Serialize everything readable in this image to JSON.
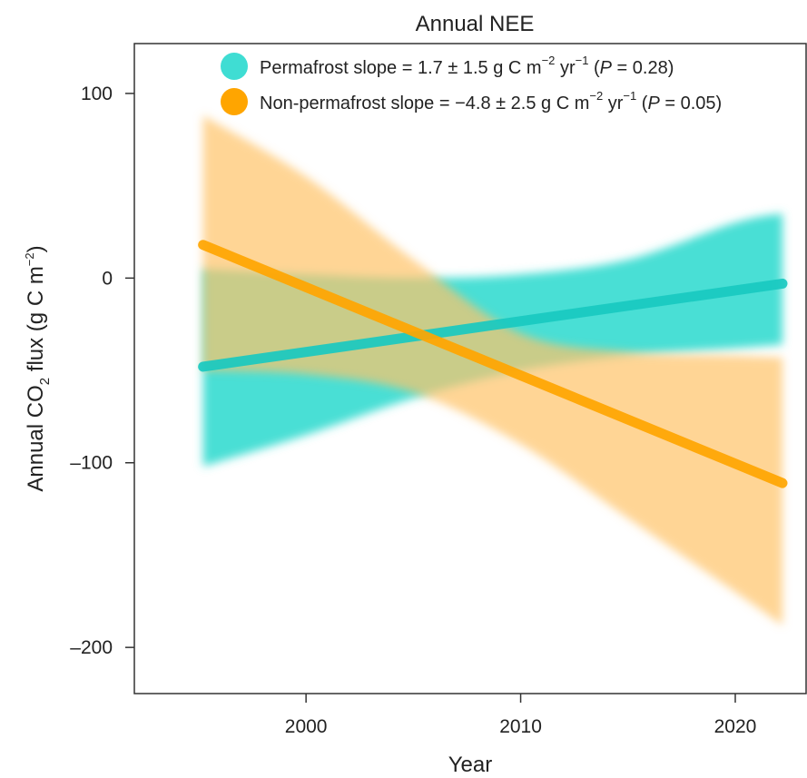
{
  "chart_data": {
    "type": "line",
    "title": "Annual NEE",
    "xlabel": "Year",
    "ylabel_parts": {
      "pre": "Annual CO",
      "sub": "2",
      "mid": " flux (g C m",
      "sup": "−2",
      "post": ")"
    },
    "xlim": [
      1992,
      2023.3
    ],
    "ylim": [
      -225,
      127
    ],
    "xticks": [
      2000,
      2010,
      2020
    ],
    "xtick_labels": [
      "2000",
      "2010",
      "2020"
    ],
    "yticks": [
      100,
      0,
      -100,
      -200
    ],
    "ytick_labels": [
      "100",
      "0",
      "–100",
      "–200"
    ],
    "x_range": [
      1995.2,
      2022.2
    ],
    "series": [
      {
        "name": "Permafrost",
        "color": "#19C9C0",
        "band_color": "#3FDDD3",
        "fit_start": -48,
        "fit_end": -3,
        "ci_upper": [
          [
            1995.2,
            5
          ],
          [
            2000,
            2
          ],
          [
            2005,
            0
          ],
          [
            2010,
            2
          ],
          [
            2015,
            10
          ],
          [
            2020,
            30
          ],
          [
            2022.2,
            35
          ]
        ],
        "ci_lower": [
          [
            1995.2,
            -102
          ],
          [
            2000,
            -85
          ],
          [
            2005,
            -65
          ],
          [
            2010,
            -50
          ],
          [
            2015,
            -42
          ],
          [
            2020,
            -38
          ],
          [
            2022.2,
            -36
          ]
        ],
        "legend": {
          "pre": "Permafrost slope = 1.7 ± 1.5 g C m",
          "sup1": "−2",
          "mid": " yr",
          "sup2": "−1",
          "p_open": " (",
          "p_var": "P",
          "p_close": " = 0.28)"
        }
      },
      {
        "name": "Non-permafrost",
        "color": "#FFA500",
        "band_color": "#FFC36A",
        "fit_start": 18,
        "fit_end": -111,
        "ci_upper": [
          [
            1995.2,
            88
          ],
          [
            2000,
            55
          ],
          [
            2005,
            10
          ],
          [
            2010,
            -30
          ],
          [
            2015,
            -40
          ],
          [
            2020,
            -42
          ],
          [
            2022.2,
            -43
          ]
        ],
        "ci_lower": [
          [
            1995.2,
            -50
          ],
          [
            2000,
            -52
          ],
          [
            2005,
            -62
          ],
          [
            2010,
            -90
          ],
          [
            2015,
            -130
          ],
          [
            2020,
            -170
          ],
          [
            2022.2,
            -188
          ]
        ],
        "legend": {
          "pre": "Non-permafrost slope = −4.8 ± 2.5 g C m",
          "sup1": "−2",
          "mid": " yr",
          "sup2": "−1",
          "p_open": "  (",
          "p_var": "P",
          "p_close": " = 0.05)"
        }
      }
    ]
  }
}
